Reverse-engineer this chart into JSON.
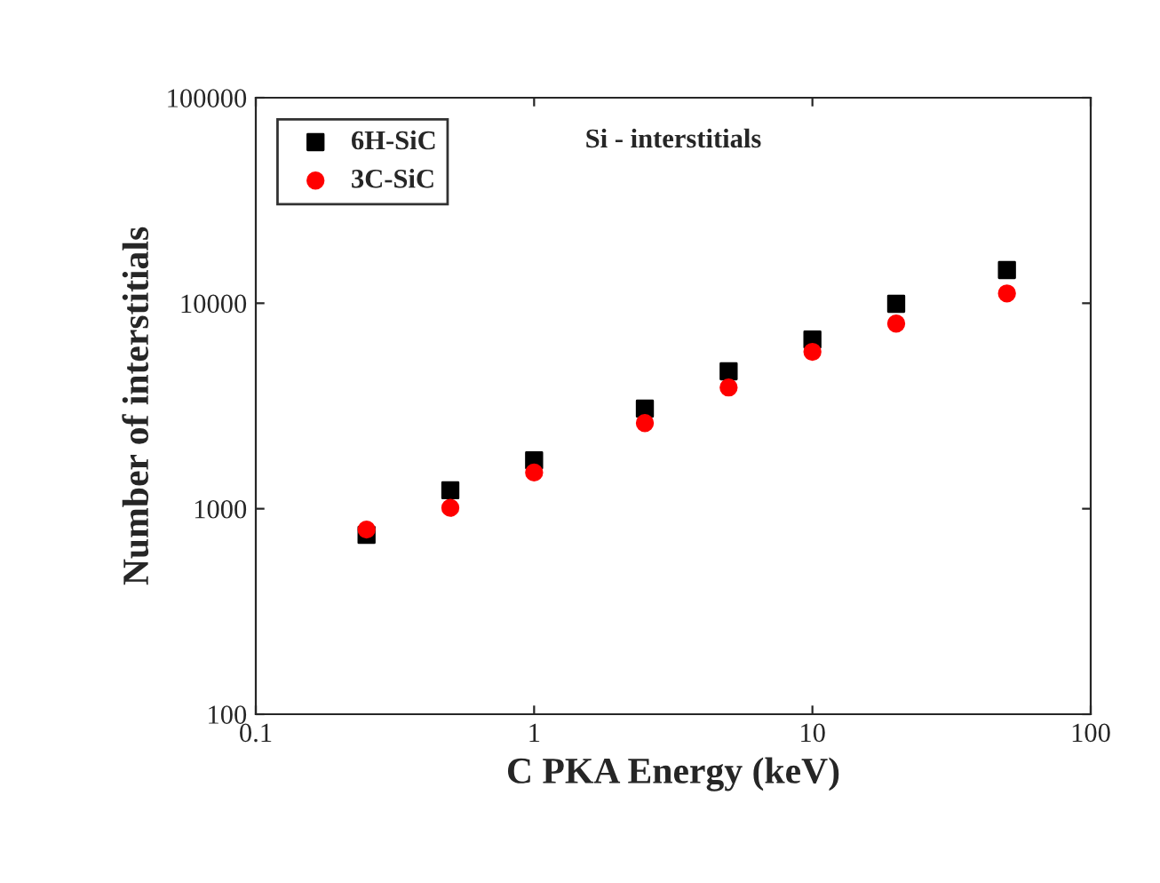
{
  "chart_data": {
    "type": "scatter",
    "xlabel": "C PKA Energy (keV)",
    "ylabel": "Number of interstitials",
    "annotations": [
      "Si - interstitials"
    ],
    "log": "xy",
    "xlim": [
      0.1,
      100
    ],
    "ylim": [
      100,
      100000
    ],
    "xticks": [
      0.1,
      1,
      10,
      100
    ],
    "yticks": [
      100,
      1000,
      10000,
      100000
    ],
    "grid": false,
    "legend": "top left",
    "series": [
      {
        "name": "6H-SiC",
        "color": "#000000",
        "marker": "square",
        "x": [
          0.25,
          0.5,
          1,
          2.5,
          5,
          10,
          20,
          50
        ],
        "values": [
          746,
          1230,
          1720,
          3070,
          4660,
          6660,
          9930,
          14500
        ]
      },
      {
        "name": "3C-SiC",
        "color": "#ff0000",
        "marker": "circle",
        "x": [
          0.25,
          0.5,
          1,
          2.5,
          5,
          10,
          20,
          50
        ],
        "values": [
          792,
          1010,
          1500,
          2610,
          3890,
          5800,
          7960,
          11160
        ]
      }
    ]
  }
}
